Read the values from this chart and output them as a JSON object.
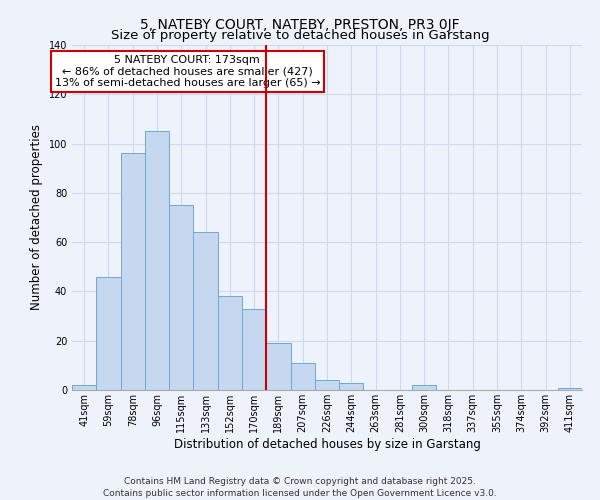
{
  "title": "5, NATEBY COURT, NATEBY, PRESTON, PR3 0JF",
  "subtitle": "Size of property relative to detached houses in Garstang",
  "xlabel": "Distribution of detached houses by size in Garstang",
  "ylabel": "Number of detached properties",
  "categories": [
    "41sqm",
    "59sqm",
    "78sqm",
    "96sqm",
    "115sqm",
    "133sqm",
    "152sqm",
    "170sqm",
    "189sqm",
    "207sqm",
    "226sqm",
    "244sqm",
    "263sqm",
    "281sqm",
    "300sqm",
    "318sqm",
    "337sqm",
    "355sqm",
    "374sqm",
    "392sqm",
    "411sqm"
  ],
  "values": [
    2,
    46,
    96,
    105,
    75,
    64,
    38,
    33,
    19,
    11,
    4,
    3,
    0,
    0,
    2,
    0,
    0,
    0,
    0,
    0,
    1
  ],
  "bar_color": "#c5d8ef",
  "bar_edge_color": "#6aaad4",
  "red_line_index": 7.5,
  "annotation_title": "5 NATEBY COURT: 173sqm",
  "annotation_line1": "← 86% of detached houses are smaller (427)",
  "annotation_line2": "13% of semi-detached houses are larger (65) →",
  "annotation_box_facecolor": "#ffffff",
  "annotation_box_edgecolor": "#cc0000",
  "ylim": [
    0,
    140
  ],
  "yticks": [
    0,
    20,
    40,
    60,
    80,
    100,
    120,
    140
  ],
  "footer1": "Contains HM Land Registry data © Crown copyright and database right 2025.",
  "footer2": "Contains public sector information licensed under the Open Government Licence v3.0.",
  "background_color": "#eef2fb",
  "grid_color": "#d0d8ee",
  "title_fontsize": 10,
  "axis_label_fontsize": 8.5,
  "tick_fontsize": 7,
  "annotation_fontsize": 8,
  "footer_fontsize": 6.5
}
